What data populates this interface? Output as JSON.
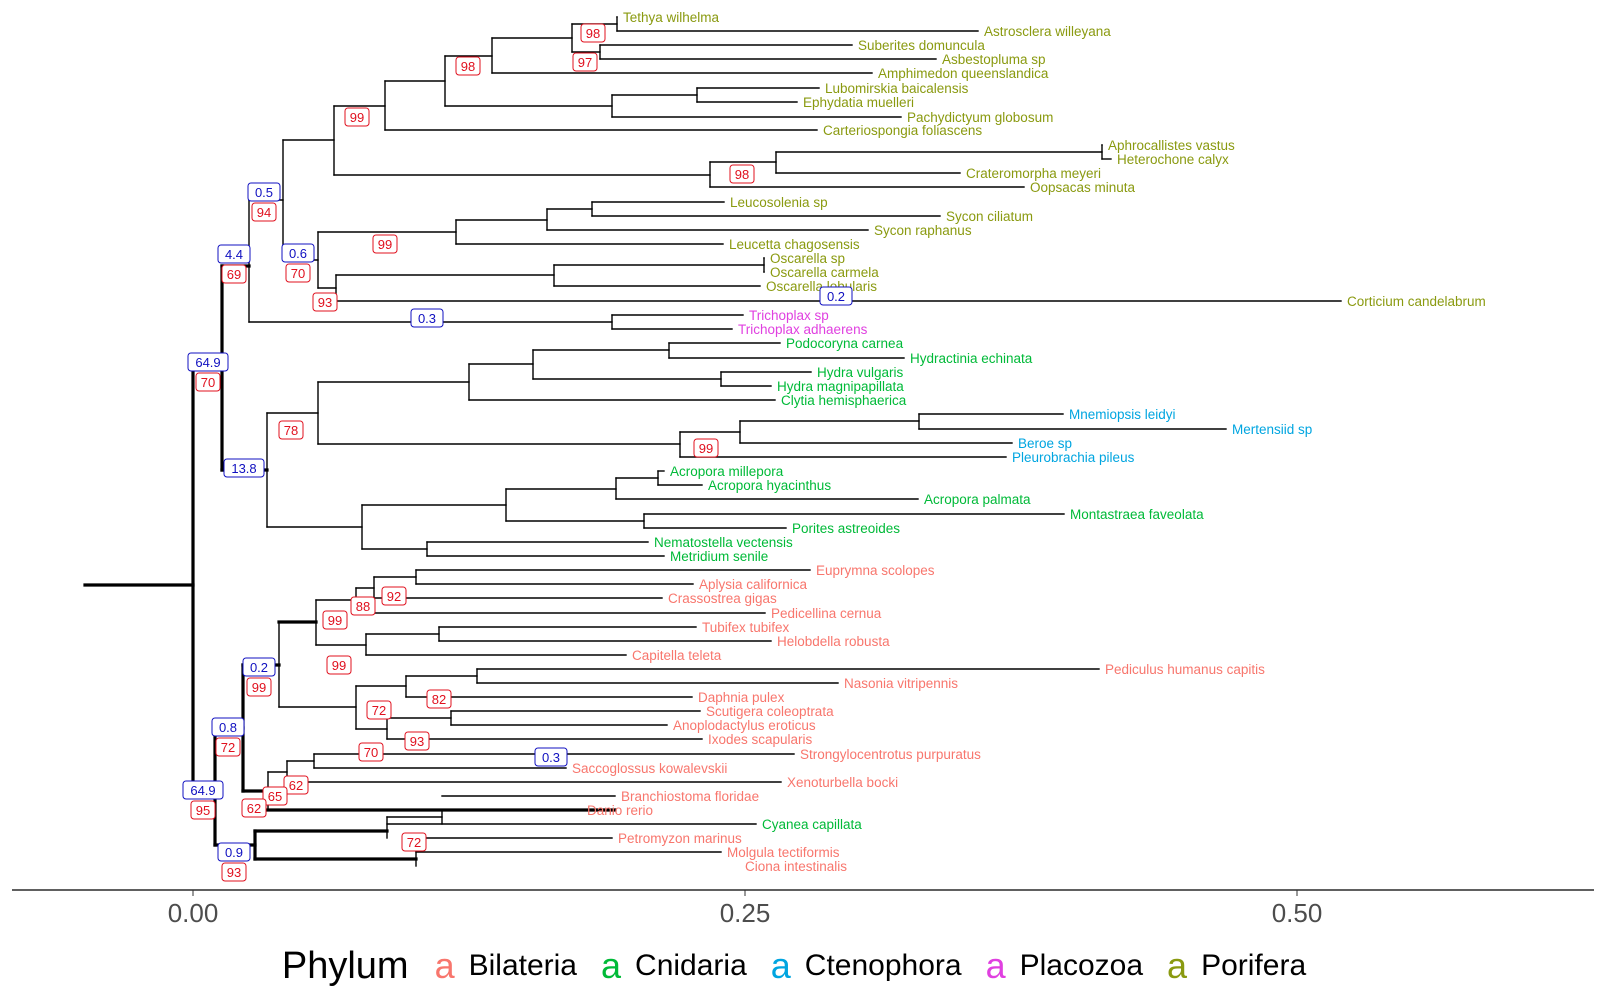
{
  "figure": {
    "axis_ticks": [
      "0.00",
      "0.25",
      "0.50"
    ]
  },
  "legend": {
    "title": "Phylum",
    "key_glyph": "a",
    "items": [
      {
        "label": "Bilateria",
        "color": "#F8766D"
      },
      {
        "label": "Cnidaria",
        "color": "#00BA38"
      },
      {
        "label": "Ctenophora",
        "color": "#00A5E0"
      },
      {
        "label": "Placozoa",
        "color": "#E040E0"
      },
      {
        "label": "Porifera",
        "color": "#8A9A10"
      }
    ]
  },
  "taxa": [
    {
      "name": "Tethya wilhelma",
      "phylum": "Porifera"
    },
    {
      "name": "Astrosclera willeyana",
      "phylum": "Porifera"
    },
    {
      "name": "Suberites domuncula",
      "phylum": "Porifera"
    },
    {
      "name": "Asbestopluma sp",
      "phylum": "Porifera"
    },
    {
      "name": "Amphimedon queenslandica",
      "phylum": "Porifera"
    },
    {
      "name": "Lubomirskia baicalensis",
      "phylum": "Porifera"
    },
    {
      "name": "Ephydatia muelleri",
      "phylum": "Porifera"
    },
    {
      "name": "Pachydictyum globosum",
      "phylum": "Porifera"
    },
    {
      "name": "Carteriospongia foliascens",
      "phylum": "Porifera"
    },
    {
      "name": "Aphrocallistes vastus",
      "phylum": "Porifera"
    },
    {
      "name": "Heterochone calyx",
      "phylum": "Porifera"
    },
    {
      "name": "Crateromorpha meyeri",
      "phylum": "Porifera"
    },
    {
      "name": "Oopsacas minuta",
      "phylum": "Porifera"
    },
    {
      "name": "Leucosolenia sp",
      "phylum": "Porifera"
    },
    {
      "name": "Sycon ciliatum",
      "phylum": "Porifera"
    },
    {
      "name": "Sycon raphanus",
      "phylum": "Porifera"
    },
    {
      "name": "Leucetta chagosensis",
      "phylum": "Porifera"
    },
    {
      "name": "Oscarella sp",
      "phylum": "Porifera"
    },
    {
      "name": "Oscarella carmela",
      "phylum": "Porifera"
    },
    {
      "name": "Oscarella lobularis",
      "phylum": "Porifera"
    },
    {
      "name": "Corticium candelabrum",
      "phylum": "Porifera"
    },
    {
      "name": "Trichoplax sp",
      "phylum": "Placozoa"
    },
    {
      "name": "Trichoplax adhaerens",
      "phylum": "Placozoa"
    },
    {
      "name": "Podocoryna carnea",
      "phylum": "Cnidaria"
    },
    {
      "name": "Hydractinia echinata",
      "phylum": "Cnidaria"
    },
    {
      "name": "Hydra vulgaris",
      "phylum": "Cnidaria"
    },
    {
      "name": "Hydra magnipapillata",
      "phylum": "Cnidaria"
    },
    {
      "name": "Clytia hemisphaerica",
      "phylum": "Cnidaria"
    },
    {
      "name": "Mnemiopsis leidyi",
      "phylum": "Ctenophora"
    },
    {
      "name": "Mertensiid sp",
      "phylum": "Ctenophora"
    },
    {
      "name": "Beroe sp",
      "phylum": "Ctenophora"
    },
    {
      "name": "Pleurobrachia pileus",
      "phylum": "Ctenophora"
    },
    {
      "name": "Acropora millepora",
      "phylum": "Cnidaria"
    },
    {
      "name": "Acropora hyacinthus",
      "phylum": "Cnidaria"
    },
    {
      "name": "Acropora palmata",
      "phylum": "Cnidaria"
    },
    {
      "name": "Montastraea faveolata",
      "phylum": "Cnidaria"
    },
    {
      "name": "Porites astreoides",
      "phylum": "Cnidaria"
    },
    {
      "name": "Nematostella vectensis",
      "phylum": "Cnidaria"
    },
    {
      "name": "Metridium senile",
      "phylum": "Cnidaria"
    },
    {
      "name": "Euprymna scolopes",
      "phylum": "Bilateria"
    },
    {
      "name": "Aplysia californica",
      "phylum": "Bilateria"
    },
    {
      "name": "Crassostrea gigas",
      "phylum": "Bilateria"
    },
    {
      "name": "Pedicellina cernua",
      "phylum": "Bilateria"
    },
    {
      "name": "Tubifex tubifex",
      "phylum": "Bilateria"
    },
    {
      "name": "Helobdella robusta",
      "phylum": "Bilateria"
    },
    {
      "name": "Capitella teleta",
      "phylum": "Bilateria"
    },
    {
      "name": "Pediculus humanus capitis",
      "phylum": "Bilateria"
    },
    {
      "name": "Nasonia vitripennis",
      "phylum": "Bilateria"
    },
    {
      "name": "Daphnia pulex",
      "phylum": "Bilateria"
    },
    {
      "name": "Scutigera coleoptrata",
      "phylum": "Bilateria"
    },
    {
      "name": "Anoplodactylus eroticus",
      "phylum": "Bilateria"
    },
    {
      "name": "Ixodes scapularis",
      "phylum": "Bilateria"
    },
    {
      "name": "Strongylocentrotus purpuratus",
      "phylum": "Bilateria"
    },
    {
      "name": "Saccoglossus kowalevskii",
      "phylum": "Bilateria"
    },
    {
      "name": "Xenoturbella bocki",
      "phylum": "Bilateria"
    },
    {
      "name": "Branchiostoma floridae",
      "phylum": "Bilateria"
    },
    {
      "name": "Danio rerio",
      "phylum": "Bilateria"
    },
    {
      "name": "Cyanea capillata",
      "phylum": "Cnidaria"
    },
    {
      "name": "Petromyzon marinus",
      "phylum": "Bilateria"
    },
    {
      "name": "Molgula tectiformis",
      "phylum": "Bilateria"
    },
    {
      "name": "Ciona intestinalis",
      "phylum": "Bilateria"
    }
  ],
  "branch_labels": [
    {
      "text": "98",
      "color": "red"
    },
    {
      "text": "97",
      "color": "red"
    },
    {
      "text": "98",
      "color": "red"
    },
    {
      "text": "99",
      "color": "red"
    },
    {
      "text": "98",
      "color": "red"
    },
    {
      "text": "0.5",
      "color": "blue"
    },
    {
      "text": "94",
      "color": "red"
    },
    {
      "text": "99",
      "color": "red"
    },
    {
      "text": "0.6",
      "color": "blue"
    },
    {
      "text": "70",
      "color": "red"
    },
    {
      "text": "4.4",
      "color": "blue"
    },
    {
      "text": "69",
      "color": "red"
    },
    {
      "text": "93",
      "color": "red"
    },
    {
      "text": "0.2",
      "color": "blue"
    },
    {
      "text": "0.3",
      "color": "blue"
    },
    {
      "text": "64.9",
      "color": "blue"
    },
    {
      "text": "70",
      "color": "red"
    },
    {
      "text": "78",
      "color": "red"
    },
    {
      "text": "99",
      "color": "red"
    },
    {
      "text": "13.8",
      "color": "blue"
    },
    {
      "text": "92",
      "color": "red"
    },
    {
      "text": "88",
      "color": "red"
    },
    {
      "text": "99",
      "color": "red"
    },
    {
      "text": "99",
      "color": "red"
    },
    {
      "text": "0.2",
      "color": "blue"
    },
    {
      "text": "99",
      "color": "red"
    },
    {
      "text": "82",
      "color": "red"
    },
    {
      "text": "72",
      "color": "red"
    },
    {
      "text": "0.8",
      "color": "blue"
    },
    {
      "text": "72",
      "color": "red"
    },
    {
      "text": "93",
      "color": "red"
    },
    {
      "text": "70",
      "color": "red"
    },
    {
      "text": "0.3",
      "color": "blue"
    },
    {
      "text": "62",
      "color": "red"
    },
    {
      "text": "65",
      "color": "red"
    },
    {
      "text": "64.9",
      "color": "blue"
    },
    {
      "text": "95",
      "color": "red"
    },
    {
      "text": "62",
      "color": "red"
    },
    {
      "text": "72",
      "color": "red"
    },
    {
      "text": "0.9",
      "color": "blue"
    },
    {
      "text": "93",
      "color": "red"
    }
  ]
}
